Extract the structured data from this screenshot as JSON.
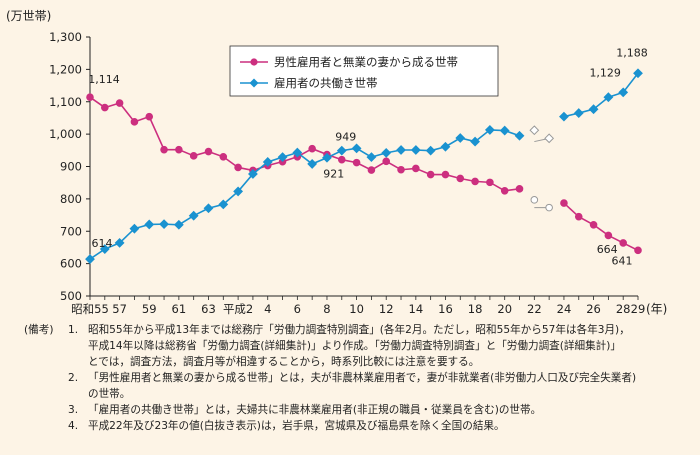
{
  "chart_data": {
    "type": "line",
    "ylabel": "(万世帯)",
    "xunit": "(年)",
    "ylim": [
      500,
      1300
    ],
    "yticks": [
      500,
      600,
      700,
      800,
      900,
      1000,
      1100,
      1200,
      1300
    ],
    "x_tick_labels": [
      {
        "i": 0,
        "label": "昭和55"
      },
      {
        "i": 2,
        "label": "57"
      },
      {
        "i": 4,
        "label": "59"
      },
      {
        "i": 6,
        "label": "61"
      },
      {
        "i": 8,
        "label": "63"
      },
      {
        "i": 10,
        "label": "平成2"
      },
      {
        "i": 12,
        "label": "4"
      },
      {
        "i": 14,
        "label": "6"
      },
      {
        "i": 16,
        "label": "8"
      },
      {
        "i": 18,
        "label": "10"
      },
      {
        "i": 20,
        "label": "12"
      },
      {
        "i": 22,
        "label": "14"
      },
      {
        "i": 24,
        "label": "16"
      },
      {
        "i": 26,
        "label": "18"
      },
      {
        "i": 28,
        "label": "20"
      },
      {
        "i": 30,
        "label": "22"
      },
      {
        "i": 32,
        "label": "24"
      },
      {
        "i": 34,
        "label": "26"
      },
      {
        "i": 36,
        "label": "28"
      },
      {
        "i": 37,
        "label": "29"
      }
    ],
    "x": [
      "昭和55",
      "56",
      "57",
      "58",
      "59",
      "60",
      "61",
      "62",
      "63",
      "平成元",
      "平成2",
      "3",
      "4",
      "5",
      "6",
      "7",
      "8",
      "9",
      "10",
      "11",
      "12",
      "13",
      "14",
      "15",
      "16",
      "17",
      "18",
      "19",
      "20",
      "21",
      "22",
      "23",
      "24",
      "25",
      "26",
      "27",
      "28",
      "29"
    ],
    "series": [
      {
        "name": "男性雇用者と無業の妻から成る世帯",
        "color": "#cc2f7f",
        "marker": "circle",
        "values": [
          1114,
          1082,
          1096,
          1038,
          1054,
          952,
          952,
          933,
          946,
          930,
          897,
          888,
          903,
          915,
          930,
          955,
          937,
          921,
          912,
          889,
          916,
          890,
          894,
          875,
          875,
          863,
          854,
          851,
          825,
          831,
          797,
          773,
          787,
          745,
          720,
          687,
          664,
          641
        ],
        "hollow_from_index": 30,
        "hollow_values": [
          773,
          773
        ]
      },
      {
        "name": "雇用者の共働き世帯",
        "color": "#1a92d0",
        "marker": "diamond",
        "values": [
          614,
          645,
          664,
          708,
          721,
          722,
          720,
          748,
          771,
          783,
          823,
          877,
          914,
          929,
          943,
          908,
          927,
          949,
          956,
          929,
          942,
          951,
          951,
          949,
          961,
          988,
          977,
          1013,
          1011,
          995,
          1012,
          987,
          1054,
          1065,
          1077,
          1114,
          1129,
          1188
        ],
        "hollow_from_index": 30,
        "hollow_values": [
          977,
          987
        ]
      }
    ],
    "annotations": [
      {
        "series": 0,
        "i": 0,
        "text": "1,114"
      },
      {
        "series": 1,
        "i": 0,
        "text": "614"
      },
      {
        "series": 1,
        "i": 17,
        "text": "949"
      },
      {
        "series": 0,
        "i": 17,
        "text": "921"
      },
      {
        "series": 1,
        "i": 36,
        "text": "1,129"
      },
      {
        "series": 1,
        "i": 37,
        "text": "1,188"
      },
      {
        "series": 0,
        "i": 36,
        "text": "664"
      },
      {
        "series": 0,
        "i": 37,
        "text": "641"
      }
    ],
    "legend_position": "top-center"
  },
  "notes": {
    "lead": "(備考)",
    "items": [
      {
        "num": "1.",
        "text": "昭和55年から平成13年までは総務庁「労働力調査特別調査」(各年2月。ただし，昭和55年から57年は各年3月)，\n平成14年以降は総務省「労働力調査(詳細集計)」より作成。「労働力調査特別調査」と「労働力調査(詳細集計)」\nとでは，調査方法，調査月等が相違することから，時系列比較には注意を要する。"
      },
      {
        "num": "2.",
        "text": "「男性雇用者と無業の妻から成る世帯」とは，夫が非農林業雇用者で，妻が非就業者(非労働力人口及び完全失業者)\nの世帯。"
      },
      {
        "num": "3.",
        "text": "「雇用者の共働き世帯」とは，夫婦共に非農林業雇用者(非正規の職員・従業員を含む)の世帯。"
      },
      {
        "num": "4.",
        "text": "平成22年及び23年の値(白抜き表示)は，岩手県，宮城県及び福島県を除く全国の結果。"
      }
    ]
  }
}
